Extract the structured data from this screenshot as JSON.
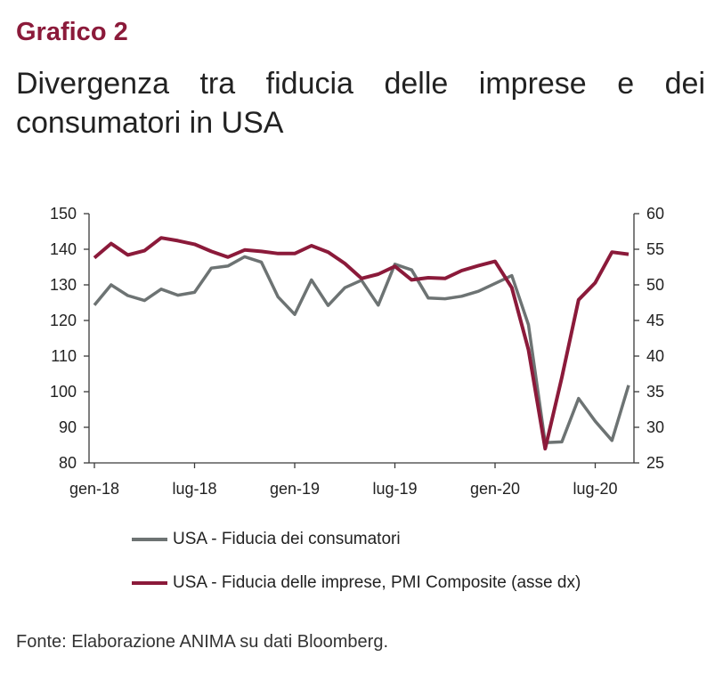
{
  "header": {
    "label": "Grafico 2",
    "title": "Divergenza tra fiducia delle imprese e dei consumatori in USA"
  },
  "colors": {
    "label": "#8b1a3a",
    "consumer": "#6d7373",
    "business": "#8b1a3a"
  },
  "chart_data": {
    "type": "line",
    "x": [
      "2018-01",
      "2018-02",
      "2018-03",
      "2018-04",
      "2018-05",
      "2018-06",
      "2018-07",
      "2018-08",
      "2018-09",
      "2018-10",
      "2018-11",
      "2018-12",
      "2019-01",
      "2019-02",
      "2019-03",
      "2019-04",
      "2019-05",
      "2019-06",
      "2019-07",
      "2019-08",
      "2019-09",
      "2019-10",
      "2019-11",
      "2019-12",
      "2020-01",
      "2020-02",
      "2020-03",
      "2020-04",
      "2020-05",
      "2020-06",
      "2020-07",
      "2020-08",
      "2020-09"
    ],
    "x_ticks": [
      "gen-18",
      "lug-18",
      "gen-19",
      "lug-19",
      "gen-20",
      "lug-20"
    ],
    "y_left": {
      "ticks": [
        "150",
        "140",
        "130",
        "120",
        "110",
        "100",
        "90",
        "80"
      ],
      "range": [
        80,
        150
      ]
    },
    "y_right": {
      "ticks": [
        "60",
        "55",
        "50",
        "45",
        "40",
        "35",
        "30",
        "25"
      ],
      "range": [
        25,
        60
      ]
    },
    "series": [
      {
        "name": "USA - Fiducia dei consumatori",
        "axis": "left",
        "values": [
          124.3,
          130.0,
          127.0,
          125.6,
          128.8,
          127.1,
          127.9,
          134.7,
          135.3,
          137.9,
          136.4,
          126.6,
          121.7,
          131.4,
          124.2,
          129.2,
          131.3,
          124.3,
          135.8,
          134.2,
          126.3,
          126.1,
          126.8,
          128.2,
          130.4,
          132.6,
          118.8,
          85.7,
          85.9,
          98.1,
          91.7,
          86.3,
          101.8
        ]
      },
      {
        "name": "USA - Fiducia delle imprese, PMI Composite (asse dx)",
        "axis": "right",
        "values": [
          53.8,
          55.8,
          54.2,
          54.8,
          56.6,
          56.2,
          55.7,
          54.7,
          53.9,
          54.9,
          54.7,
          54.4,
          54.4,
          55.5,
          54.6,
          53.0,
          50.9,
          51.5,
          52.6,
          50.7,
          51.0,
          50.9,
          52.0,
          52.7,
          53.3,
          49.6,
          40.9,
          27.0,
          37.0,
          47.9,
          50.3,
          54.6,
          54.3
        ]
      }
    ],
    "legend_position": "bottom",
    "grid": false
  },
  "source": "Fonte: Elaborazione ANIMA su dati Bloomberg."
}
